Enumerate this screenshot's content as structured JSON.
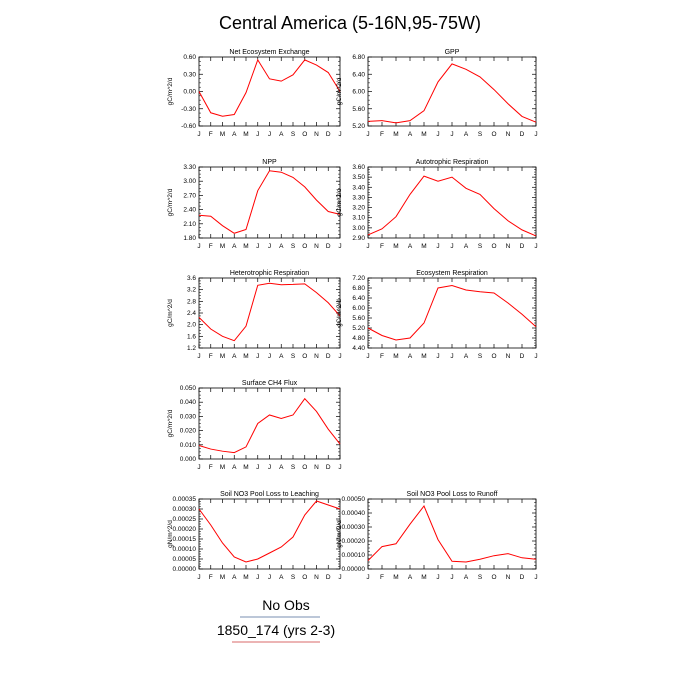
{
  "figure": {
    "title": "Central America (5-16N,95-75W)",
    "legend": [
      {
        "label": "No Obs",
        "color": "#7a8fb0"
      },
      {
        "label": "1850_174 (yrs 2-3)",
        "color": "#d96a6a"
      }
    ],
    "line_color": "#ff0000"
  },
  "chart_data": [
    {
      "type": "line",
      "title": "Net Ecosystem Exchange",
      "ylabel": "gC/m^2/d",
      "categories": [
        "J",
        "F",
        "M",
        "A",
        "M",
        "J",
        "J",
        "A",
        "S",
        "O",
        "N",
        "D",
        "J"
      ],
      "values": [
        0.0,
        -0.37,
        -0.43,
        -0.4,
        -0.02,
        0.55,
        0.22,
        0.18,
        0.29,
        0.55,
        0.46,
        0.33,
        0.0
      ],
      "ylim": [
        -0.6,
        0.6
      ],
      "yticks": [
        "0.60",
        "0.30",
        "0.00",
        "-0.30",
        "-0.60"
      ]
    },
    {
      "type": "line",
      "title": "GPP",
      "ylabel": "gC/m^2/d",
      "categories": [
        "J",
        "F",
        "M",
        "A",
        "M",
        "J",
        "J",
        "A",
        "S",
        "O",
        "N",
        "D",
        "J"
      ],
      "values": [
        5.22,
        5.24,
        5.18,
        5.24,
        5.5,
        6.25,
        6.72,
        6.58,
        6.38,
        6.05,
        5.68,
        5.35,
        5.2
      ],
      "ylim": [
        5.1,
        6.9
      ],
      "yticks": [
        "6.80",
        "6.40",
        "6.00",
        "5.60",
        "5.20"
      ]
    },
    {
      "type": "line",
      "title": "NPP",
      "ylabel": "gC/m^2/d",
      "categories": [
        "J",
        "F",
        "M",
        "A",
        "M",
        "J",
        "J",
        "A",
        "S",
        "O",
        "N",
        "D",
        "J"
      ],
      "values": [
        2.28,
        2.26,
        2.06,
        1.9,
        1.98,
        2.8,
        3.22,
        3.19,
        3.08,
        2.88,
        2.6,
        2.36,
        2.3
      ],
      "ylim": [
        1.8,
        3.3
      ],
      "yticks": [
        "3.30",
        "3.00",
        "2.70",
        "2.40",
        "2.10",
        "1.80"
      ]
    },
    {
      "type": "line",
      "title": "Autotrophic Respiration",
      "ylabel": "gC/m^2/d",
      "categories": [
        "J",
        "F",
        "M",
        "A",
        "M",
        "J",
        "J",
        "A",
        "S",
        "O",
        "N",
        "D",
        "J"
      ],
      "values": [
        2.93,
        2.99,
        3.11,
        3.33,
        3.51,
        3.46,
        3.5,
        3.39,
        3.33,
        3.19,
        3.07,
        2.98,
        2.92
      ],
      "ylim": [
        2.9,
        3.6
      ],
      "yticks": [
        "3.60",
        "3.50",
        "3.40",
        "3.30",
        "3.20",
        "3.10",
        "3.00",
        "2.90"
      ]
    },
    {
      "type": "line",
      "title": "Heterotrophic Respiration",
      "ylabel": "gC/m^2/d",
      "categories": [
        "J",
        "F",
        "M",
        "A",
        "M",
        "J",
        "J",
        "A",
        "S",
        "O",
        "N",
        "D",
        "J"
      ],
      "values": [
        2.25,
        1.85,
        1.6,
        1.45,
        1.95,
        3.35,
        3.42,
        3.37,
        3.38,
        3.4,
        3.1,
        2.75,
        2.3
      ],
      "ylim": [
        1.2,
        3.6
      ],
      "yticks": [
        "3.6",
        "3.2",
        "2.8",
        "2.4",
        "2.0",
        "1.6",
        "1.2"
      ]
    },
    {
      "type": "line",
      "title": "Ecosystem Respiration",
      "ylabel": "gC/m^2/d",
      "categories": [
        "J",
        "F",
        "M",
        "A",
        "M",
        "J",
        "J",
        "A",
        "S",
        "O",
        "N",
        "D",
        "J"
      ],
      "values": [
        5.2,
        4.9,
        4.72,
        4.8,
        5.4,
        6.8,
        6.9,
        6.72,
        6.65,
        6.6,
        6.2,
        5.75,
        5.25
      ],
      "ylim": [
        4.4,
        7.2
      ],
      "yticks": [
        "7.20",
        "6.80",
        "6.40",
        "6.00",
        "5.60",
        "5.20",
        "4.80",
        "4.40"
      ]
    },
    {
      "type": "line",
      "title": "Surface CH4 Flux",
      "ylabel": "gC/m^2/d",
      "categories": [
        "J",
        "F",
        "M",
        "A",
        "M",
        "J",
        "J",
        "A",
        "S",
        "O",
        "N",
        "D",
        "J"
      ],
      "values": [
        0.0095,
        0.007,
        0.0055,
        0.0045,
        0.0085,
        0.025,
        0.031,
        0.0285,
        0.031,
        0.0425,
        0.0335,
        0.021,
        0.0105
      ],
      "ylim": [
        0.0,
        0.05
      ],
      "yticks": [
        "0.050",
        "0.040",
        "0.030",
        "0.020",
        "0.010",
        "0.000"
      ]
    },
    {
      "type": "line",
      "title": "Soil NO3 Pool Loss to Leaching",
      "ylabel": "gN/m^2/d",
      "categories": [
        "J",
        "F",
        "M",
        "A",
        "M",
        "J",
        "J",
        "A",
        "S",
        "O",
        "N",
        "D",
        "J"
      ],
      "values": [
        0.0003,
        0.00022,
        0.00013,
        6e-05,
        3.5e-05,
        5e-05,
        8e-05,
        0.00011,
        0.00016,
        0.00027,
        0.00034,
        0.00032,
        0.0003
      ],
      "ylim": [
        0.0,
        0.00035
      ],
      "yticks": [
        "0.00035",
        "0.00030",
        "0.00025",
        "0.00020",
        "0.00015",
        "0.00010",
        "0.00005",
        "0.00000"
      ]
    },
    {
      "type": "line",
      "title": "Soil NO3 Pool Loss to Runoff",
      "ylabel": "gN/m^2/d",
      "categories": [
        "J",
        "F",
        "M",
        "A",
        "M",
        "J",
        "J",
        "A",
        "S",
        "O",
        "N",
        "D",
        "J"
      ],
      "values": [
        6e-05,
        0.00016,
        0.00018,
        0.00032,
        0.00045,
        0.00021,
        5.5e-05,
        5e-05,
        7e-05,
        9.5e-05,
        0.00011,
        8e-05,
        7e-05
      ],
      "ylim": [
        0.0,
        0.0005
      ],
      "yticks": [
        "0.00050",
        "0.00040",
        "0.00030",
        "0.00020",
        "0.00010",
        "0.00000"
      ]
    }
  ]
}
